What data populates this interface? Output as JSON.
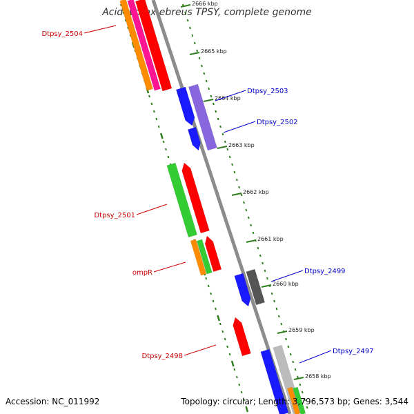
{
  "title": "Acidovorax ebreus TPSY, complete genome",
  "accession_text": "Accession: NC_011992",
  "topology_text": "Topology: circular; Length: 3,796,573 bp; Genes: 3,544",
  "colors": {
    "backbone": "#8c8c8c",
    "tick": "#2e7d1e",
    "label_red": "#cc0000",
    "label_blue": "#0000cc"
  },
  "kbp_labels": [
    "2666 kbp",
    "2665 kbp",
    "2664 kbp",
    "2663 kbp",
    "2662 kbp",
    "2661 kbp",
    "2660 kbp",
    "2659 kbp",
    "2658 kbp"
  ],
  "gene_labels": [
    {
      "text": "Dtpsy_2504",
      "color": "red"
    },
    {
      "text": "Dtpsy_2503",
      "color": "blue"
    },
    {
      "text": "Dtpsy_2502",
      "color": "blue"
    },
    {
      "text": "Dtpsy_2501",
      "color": "red"
    },
    {
      "text": "ompR",
      "color": "red"
    },
    {
      "text": "Dtpsy_2499",
      "color": "blue"
    },
    {
      "text": "Dtpsy_2498",
      "color": "red"
    },
    {
      "text": "Dtpsy_2497",
      "color": "blue"
    }
  ]
}
